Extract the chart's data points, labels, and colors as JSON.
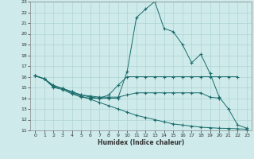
{
  "title": "",
  "xlabel": "Humidex (Indice chaleur)",
  "xlim": [
    -0.5,
    23.5
  ],
  "ylim": [
    11,
    23
  ],
  "yticks": [
    11,
    12,
    13,
    14,
    15,
    16,
    17,
    18,
    19,
    20,
    21,
    22,
    23
  ],
  "xticks": [
    0,
    1,
    2,
    3,
    4,
    5,
    6,
    7,
    8,
    9,
    10,
    11,
    12,
    13,
    14,
    15,
    16,
    17,
    18,
    19,
    20,
    21,
    22,
    23
  ],
  "bg_color": "#ceeaea",
  "line_color": "#1a6b6b",
  "grid_color": "#aed4d4",
  "line1_x": [
    0,
    1,
    2,
    3,
    4,
    5,
    6,
    7,
    8,
    9,
    10,
    11,
    12,
    13,
    14,
    15,
    16,
    17,
    18,
    19,
    20,
    21,
    22,
    23
  ],
  "line1_y": [
    16.1,
    15.8,
    15.0,
    14.8,
    14.4,
    14.1,
    14.0,
    14.0,
    14.0,
    14.0,
    16.5,
    21.5,
    22.3,
    23.0,
    20.5,
    20.2,
    19.0,
    17.3,
    18.1,
    16.3,
    14.1,
    13.0,
    11.5,
    11.2
  ],
  "line2_x": [
    0,
    1,
    2,
    3,
    4,
    5,
    6,
    7,
    8,
    9,
    10,
    11,
    12,
    13,
    14,
    15,
    16,
    17,
    18,
    19,
    20,
    21,
    22
  ],
  "line2_y": [
    16.1,
    15.8,
    15.1,
    14.9,
    14.6,
    14.3,
    14.1,
    14.0,
    14.3,
    15.2,
    16.0,
    16.0,
    16.0,
    16.0,
    16.0,
    16.0,
    16.0,
    16.0,
    16.0,
    16.0,
    16.0,
    16.0,
    16.0
  ],
  "line3_x": [
    0,
    1,
    2,
    3,
    4,
    5,
    6,
    7,
    8,
    9,
    10,
    11,
    12,
    13,
    14,
    15,
    16,
    17,
    18,
    19,
    20
  ],
  "line3_y": [
    16.1,
    15.8,
    15.1,
    14.9,
    14.6,
    14.3,
    14.2,
    14.1,
    14.1,
    14.1,
    14.3,
    14.5,
    14.5,
    14.5,
    14.5,
    14.5,
    14.5,
    14.5,
    14.5,
    14.1,
    14.0
  ],
  "line4_x": [
    0,
    1,
    2,
    3,
    4,
    5,
    6,
    7,
    8,
    9,
    10,
    11,
    12,
    13,
    14,
    15,
    16,
    17,
    18,
    19,
    20,
    21,
    22,
    23
  ],
  "line4_y": [
    16.1,
    15.8,
    15.2,
    14.9,
    14.5,
    14.2,
    13.9,
    13.6,
    13.3,
    13.0,
    12.7,
    12.4,
    12.2,
    12.0,
    11.8,
    11.6,
    11.5,
    11.4,
    11.3,
    11.25,
    11.2,
    11.18,
    11.15,
    11.1
  ]
}
